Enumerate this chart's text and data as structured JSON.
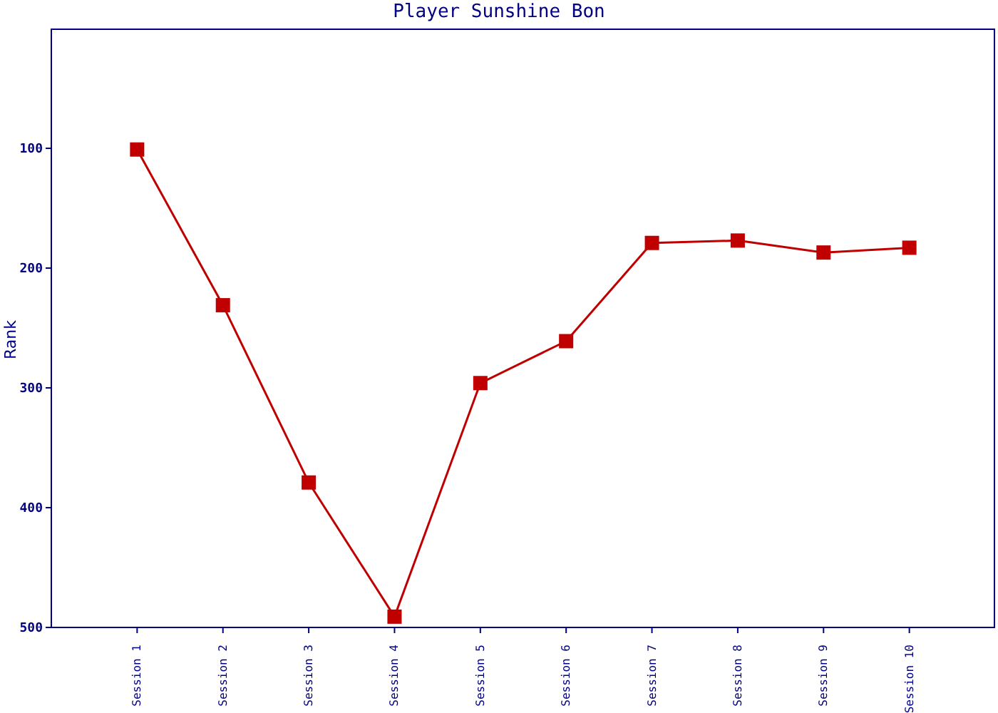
{
  "chart_data": {
    "type": "line",
    "title": "Player Sunshine Bon",
    "ylabel": "Rank",
    "categories": [
      "Session 1",
      "Session 2",
      "Session 3",
      "Session 4",
      "Session 5",
      "Session 6",
      "Session 7",
      "Session 8",
      "Session 9",
      "Session 10"
    ],
    "series": [
      {
        "color": "#c00000",
        "values": [
          101,
          231,
          379,
          491,
          296,
          261,
          179,
          177,
          187,
          183
        ]
      }
    ],
    "ylim": [
      500,
      0
    ],
    "yticks": [
      100,
      200,
      300,
      400,
      500
    ],
    "grid": false,
    "legend": false,
    "marker": "square",
    "line_style": "solid"
  }
}
